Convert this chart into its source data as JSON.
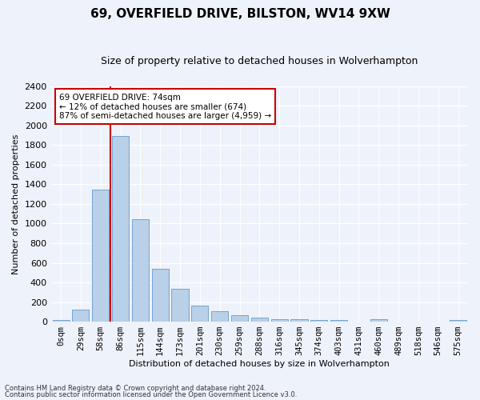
{
  "title": "69, OVERFIELD DRIVE, BILSTON, WV14 9XW",
  "subtitle": "Size of property relative to detached houses in Wolverhampton",
  "xlabel": "Distribution of detached houses by size in Wolverhampton",
  "ylabel": "Number of detached properties",
  "bar_color": "#b8d0e8",
  "bar_edge_color": "#6699cc",
  "categories": [
    "0sqm",
    "29sqm",
    "58sqm",
    "86sqm",
    "115sqm",
    "144sqm",
    "173sqm",
    "201sqm",
    "230sqm",
    "259sqm",
    "288sqm",
    "316sqm",
    "345sqm",
    "374sqm",
    "403sqm",
    "431sqm",
    "460sqm",
    "489sqm",
    "518sqm",
    "546sqm",
    "575sqm"
  ],
  "values": [
    15,
    125,
    1350,
    1890,
    1045,
    540,
    335,
    160,
    110,
    63,
    38,
    28,
    25,
    20,
    15,
    0,
    25,
    0,
    0,
    0,
    15
  ],
  "ylim": [
    0,
    2400
  ],
  "yticks": [
    0,
    200,
    400,
    600,
    800,
    1000,
    1200,
    1400,
    1600,
    1800,
    2000,
    2200,
    2400
  ],
  "vline_x": 2.5,
  "annotation_text": "69 OVERFIELD DRIVE: 74sqm\n← 12% of detached houses are smaller (674)\n87% of semi-detached houses are larger (4,959) →",
  "annotation_box_color": "#ffffff",
  "annotation_box_edge": "#cc0000",
  "vline_color": "#cc0000",
  "footer1": "Contains HM Land Registry data © Crown copyright and database right 2024.",
  "footer2": "Contains public sector information licensed under the Open Government Licence v3.0.",
  "background_color": "#eef2fb",
  "plot_bg_color": "#eef2fb",
  "grid_color": "#ffffff",
  "title_fontsize": 11,
  "subtitle_fontsize": 9,
  "ylabel_fontsize": 8,
  "xlabel_fontsize": 8,
  "tick_fontsize": 7.5,
  "annotation_fontsize": 7.5
}
